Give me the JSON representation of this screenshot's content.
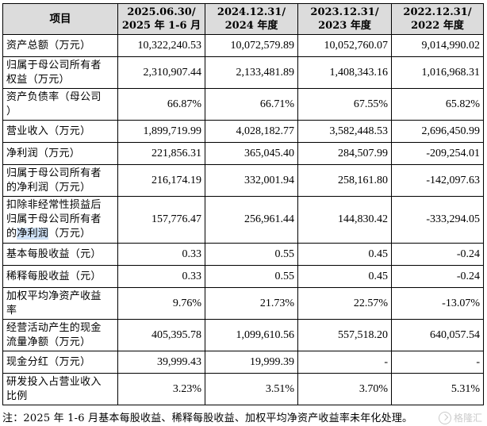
{
  "table": {
    "header": {
      "item": "项目",
      "col1_line1": "2025.06.30/",
      "col1_line2": "2025 年 1-6 月",
      "col2_line1": "2024.12.31/",
      "col2_line2": "2024 年度",
      "col3_line1": "2023.12.31/",
      "col3_line2": "2023 年度",
      "col4_line1": "2022.12.31/",
      "col4_line2": "2022 年度"
    },
    "rows": [
      {
        "label_line1": "资产总额（万元）",
        "label_line2": "",
        "label_line3": "",
        "values": [
          "10,322,240.53",
          "10,072,579.89",
          "10,052,760.07",
          "9,014,990.02"
        ]
      },
      {
        "label_line1": "归属于母公司所有者",
        "label_line2": "权益（万元）",
        "label_line3": "",
        "values": [
          "2,310,907.44",
          "2,133,481.89",
          "1,408,343.16",
          "1,016,968.31"
        ]
      },
      {
        "label_line1": "资产负债率（母公司",
        "label_line2": "）",
        "label_line3": "",
        "values": [
          "66.87%",
          "66.71%",
          "67.55%",
          "65.82%"
        ]
      },
      {
        "label_line1": "营业收入（万元）",
        "label_line2": "",
        "label_line3": "",
        "values": [
          "1,899,719.99",
          "4,028,182.77",
          "3,582,448.53",
          "2,696,450.99"
        ]
      },
      {
        "label_line1": "净利润（万元）",
        "label_line2": "",
        "label_line3": "",
        "values": [
          "221,856.31",
          "365,045.40",
          "284,507.99",
          "-209,254.01"
        ]
      },
      {
        "label_line1": "归属于母公司所有者",
        "label_line2": "的净利润（万元）",
        "label_line3": "",
        "values": [
          "216,174.19",
          "332,001.94",
          "258,161.80",
          "-142,097.63"
        ]
      },
      {
        "label_line1": "扣除非经常性损益后",
        "label_line2": "归属于母公司所有者",
        "label_line3_a": "的",
        "label_line3_hl": "净利润",
        "label_line3_b": "（万元）",
        "values": [
          "157,776.47",
          "256,961.44",
          "144,830.42",
          "-333,294.05"
        ]
      },
      {
        "label_line1": "基本每股收益（元）",
        "label_line2": "",
        "label_line3": "",
        "values": [
          "0.33",
          "0.55",
          "0.45",
          "-0.24"
        ]
      },
      {
        "label_line1": "稀释每股收益（元）",
        "label_line2": "",
        "label_line3": "",
        "values": [
          "0.33",
          "0.55",
          "0.45",
          "-0.24"
        ]
      },
      {
        "label_line1": "加权平均净资产收益",
        "label_line2": "率",
        "label_line3": "",
        "values": [
          "9.76%",
          "21.73%",
          "22.57%",
          "-13.07%"
        ]
      },
      {
        "label_line1": "经营活动产生的现金",
        "label_line2": "流量净额（万元）",
        "label_line3": "",
        "values": [
          "405,395.78",
          "1,099,610.56",
          "557,518.20",
          "640,057.54"
        ]
      },
      {
        "label_line1": "现金分红（万元）",
        "label_line2": "",
        "label_line3": "",
        "values": [
          "39,999.43",
          "19,999.39",
          "-",
          "-"
        ]
      },
      {
        "label_line1": "研发投入占营业收入",
        "label_line2": "比例",
        "label_line3": "",
        "values": [
          "3.23%",
          "3.51%",
          "3.70%",
          "5.31%"
        ]
      }
    ]
  },
  "note": "注：2025 年 1-6 月基本每股收益、稀释每股收益、加权平均净资产收益率未年化处理。",
  "watermark": {
    "text": "格隆汇",
    "icon": "gelonghui-logo-icon",
    "color": "#b9b9b9"
  },
  "colors": {
    "header_bg": "#dcdcdc",
    "highlight": "#cfe2f7"
  }
}
